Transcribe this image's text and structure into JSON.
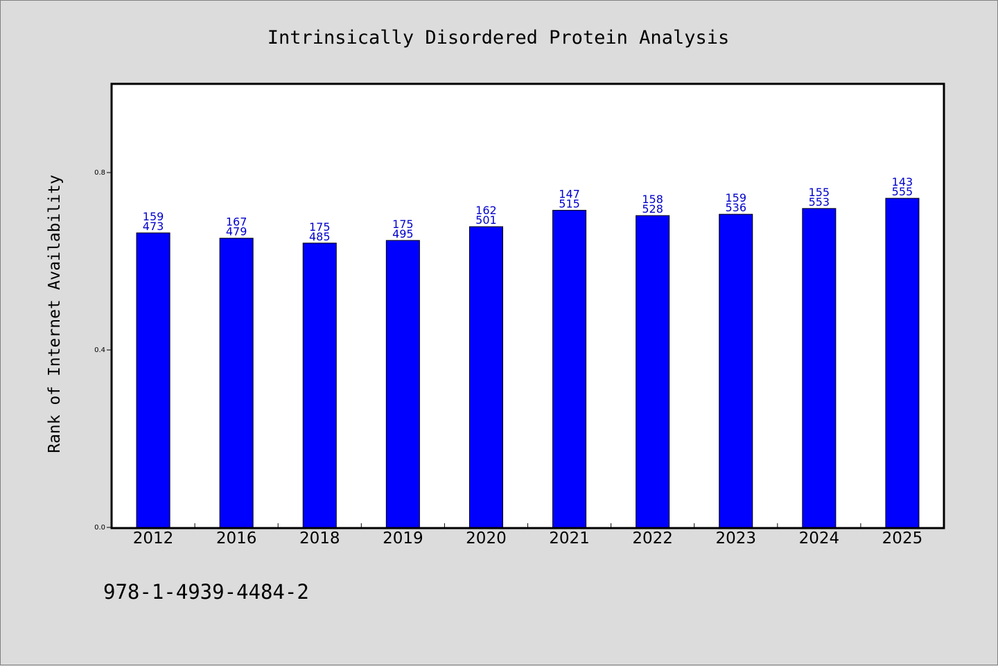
{
  "chart_data": {
    "type": "bar",
    "title": "Intrinsically Disordered Protein Analysis",
    "xlabel": "",
    "ylabel": "Rank of Internet Availability",
    "ylim": [
      0,
      1.0
    ],
    "yticks": [
      "0.0",
      "0.4",
      "0.8"
    ],
    "ytick_values": [
      0.0,
      0.4,
      0.8
    ],
    "grid": false,
    "categories": [
      "2012",
      "2016",
      "2018",
      "2019",
      "2020",
      "2021",
      "2022",
      "2023",
      "2024",
      "2025"
    ],
    "values": [
      0.664,
      0.652,
      0.641,
      0.647,
      0.678,
      0.715,
      0.703,
      0.706,
      0.719,
      0.742
    ],
    "data_labels_top": [
      "159",
      "167",
      "175",
      "175",
      "162",
      "147",
      "158",
      "159",
      "155",
      "143"
    ],
    "data_labels_bottom": [
      "473",
      "479",
      "485",
      "495",
      "501",
      "515",
      "528",
      "536",
      "553",
      "555"
    ],
    "bar_color": "#0000ff",
    "label_color": "#0000cc"
  },
  "footer": {
    "isbn": "978-1-4939-4484-2"
  }
}
